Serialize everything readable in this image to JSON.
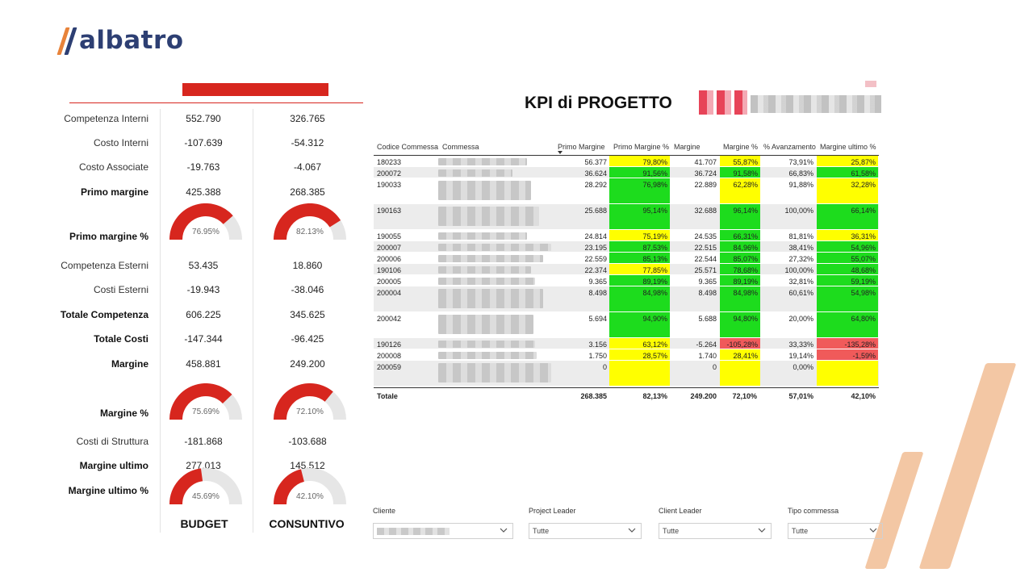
{
  "app": {
    "logo_text": "albatro"
  },
  "report": {
    "title": "KPI di PROGETTO"
  },
  "summary": {
    "columns": [
      "BUDGET",
      "CONSUNTIVO"
    ],
    "rows": [
      {
        "label": "Competenza Interni",
        "bold": false,
        "budget": "552.790",
        "consuntivo": "326.765"
      },
      {
        "label": "Costo Interni",
        "bold": false,
        "budget": "-107.639",
        "consuntivo": "-54.312"
      },
      {
        "label": "Costo Associate",
        "bold": false,
        "budget": "-19.763",
        "consuntivo": "-4.067"
      },
      {
        "label": "Primo margine",
        "bold": true,
        "budget": "425.388",
        "consuntivo": "268.385"
      },
      {
        "label": "Primo margine %",
        "bold": true,
        "gauge": true,
        "budget": "76.95%",
        "consuntivo": "82.13%",
        "budget_fraction": 0.7695,
        "consuntivo_fraction": 0.8213
      },
      {
        "label": "Competenza Esterni",
        "bold": false,
        "budget": "53.435",
        "consuntivo": "18.860"
      },
      {
        "label": "Costi Esterni",
        "bold": false,
        "budget": "-19.943",
        "consuntivo": "-38.046"
      },
      {
        "label": "Totale Competenza",
        "bold": true,
        "budget": "606.225",
        "consuntivo": "345.625"
      },
      {
        "label": "Totale Costi",
        "bold": true,
        "budget": "-147.344",
        "consuntivo": "-96.425"
      },
      {
        "label": "Margine",
        "bold": true,
        "budget": "458.881",
        "consuntivo": "249.200"
      },
      {
        "label": "Margine %",
        "bold": true,
        "gauge": true,
        "budget": "75.69%",
        "consuntivo": "72.10%",
        "budget_fraction": 0.7569,
        "consuntivo_fraction": 0.721
      },
      {
        "label": "Costi di Struttura",
        "bold": false,
        "budget": "-181.868",
        "consuntivo": "-103.688"
      },
      {
        "label": "Margine ultimo",
        "bold": true,
        "budget": "277.013",
        "consuntivo": "145.512"
      },
      {
        "label": "Margine ultimo %",
        "bold": true,
        "gauge": true,
        "budget": "45.69%",
        "consuntivo": "42.10%",
        "budget_fraction": 0.4569,
        "consuntivo_fraction": 0.421
      }
    ]
  },
  "table": {
    "headers": [
      "Codice Commessa",
      "Commessa",
      "Primo Margine",
      "Primo Margine %",
      "Margine",
      "Margine %",
      "% Avanzamento",
      "Margine ultimo %"
    ],
    "rows": [
      {
        "code": "180233",
        "pm": "56.377",
        "pmp": "79,80%",
        "pmp_c": "yellow",
        "m": "41.707",
        "mp": "55,87%",
        "mp_c": "yellow",
        "av": "73,91%",
        "mu": "25,87%",
        "mu_c": "yellow",
        "tall": false
      },
      {
        "code": "200072",
        "pm": "36.624",
        "pmp": "91,56%",
        "pmp_c": "green",
        "m": "36.724",
        "mp": "91,58%",
        "mp_c": "green",
        "av": "66,83%",
        "mu": "61,58%",
        "mu_c": "green",
        "tall": false
      },
      {
        "code": "190033",
        "pm": "28.292",
        "pmp": "76,98%",
        "pmp_c": "green",
        "m": "22.889",
        "mp": "62,28%",
        "mp_c": "yellow",
        "av": "91,88%",
        "mu": "32,28%",
        "mu_c": "yellow",
        "tall": true
      },
      {
        "code": "190163",
        "pm": "25.688",
        "pmp": "95,14%",
        "pmp_c": "green",
        "m": "32.688",
        "mp": "96,14%",
        "mp_c": "green",
        "av": "100,00%",
        "mu": "66,14%",
        "mu_c": "green",
        "tall": true
      },
      {
        "code": "190055",
        "pm": "24.814",
        "pmp": "75,19%",
        "pmp_c": "yellow",
        "m": "24.535",
        "mp": "66,31%",
        "mp_c": "green",
        "av": "81,81%",
        "mu": "36,31%",
        "mu_c": "yellow",
        "tall": false
      },
      {
        "code": "200007",
        "pm": "23.195",
        "pmp": "87,53%",
        "pmp_c": "green",
        "m": "22.515",
        "mp": "84,96%",
        "mp_c": "green",
        "av": "38,41%",
        "mu": "54,96%",
        "mu_c": "green",
        "tall": false
      },
      {
        "code": "200006",
        "pm": "22.559",
        "pmp": "85,13%",
        "pmp_c": "green",
        "m": "22.544",
        "mp": "85,07%",
        "mp_c": "green",
        "av": "27,32%",
        "mu": "55,07%",
        "mu_c": "green",
        "tall": false
      },
      {
        "code": "190106",
        "pm": "22.374",
        "pmp": "77,85%",
        "pmp_c": "yellow",
        "m": "25.571",
        "mp": "78,68%",
        "mp_c": "green",
        "av": "100,00%",
        "mu": "48,68%",
        "mu_c": "green",
        "tall": false
      },
      {
        "code": "200005",
        "pm": "9.365",
        "pmp": "89,19%",
        "pmp_c": "green",
        "m": "9.365",
        "mp": "89,19%",
        "mp_c": "green",
        "av": "32,81%",
        "mu": "59,19%",
        "mu_c": "green",
        "tall": false
      },
      {
        "code": "200004",
        "pm": "8.498",
        "pmp": "84,98%",
        "pmp_c": "green",
        "m": "8.498",
        "mp": "84,98%",
        "mp_c": "green",
        "av": "60,61%",
        "mu": "54,98%",
        "mu_c": "green",
        "tall": true
      },
      {
        "code": "200042",
        "pm": "5.694",
        "pmp": "94,90%",
        "pmp_c": "green",
        "m": "5.688",
        "mp": "94,80%",
        "mp_c": "green",
        "av": "20,00%",
        "mu": "64,80%",
        "mu_c": "green",
        "tall": true
      },
      {
        "code": "190126",
        "pm": "3.156",
        "pmp": "63,12%",
        "pmp_c": "yellow",
        "m": "-5.264",
        "mp": "-105,28%",
        "mp_c": "red",
        "av": "33,33%",
        "mu": "-135,28%",
        "mu_c": "red",
        "tall": false
      },
      {
        "code": "200008",
        "pm": "1.750",
        "pmp": "28,57%",
        "pmp_c": "yellow",
        "m": "1.740",
        "mp": "28,41%",
        "mp_c": "yellow",
        "av": "19,14%",
        "mu": "-1,59%",
        "mu_c": "red",
        "tall": false
      },
      {
        "code": "200059",
        "pm": "0",
        "pmp": "",
        "pmp_c": "yellow",
        "m": "0",
        "mp": "",
        "mp_c": "yellow",
        "av": "0,00%",
        "mu": "",
        "mu_c": "yellow",
        "tall": true
      }
    ],
    "total": {
      "label": "Totale",
      "pm": "268.385",
      "pmp": "82,13%",
      "m": "249.200",
      "mp": "72,10%",
      "av": "57,01%",
      "mu": "42,10%"
    }
  },
  "filters": [
    {
      "label": "Cliente",
      "value": ""
    },
    {
      "label": "Project Leader",
      "value": "Tutte"
    },
    {
      "label": "Client Leader",
      "value": "Tutte"
    },
    {
      "label": "Tipo commessa",
      "value": "Tutte"
    }
  ],
  "colors": {
    "accent": "#d7261e",
    "brand": "#2d3f73",
    "green": "#1ddc1d",
    "yellow": "#ffff00",
    "red": "#f05a5a",
    "gauge_track": "#e6e6e6"
  }
}
